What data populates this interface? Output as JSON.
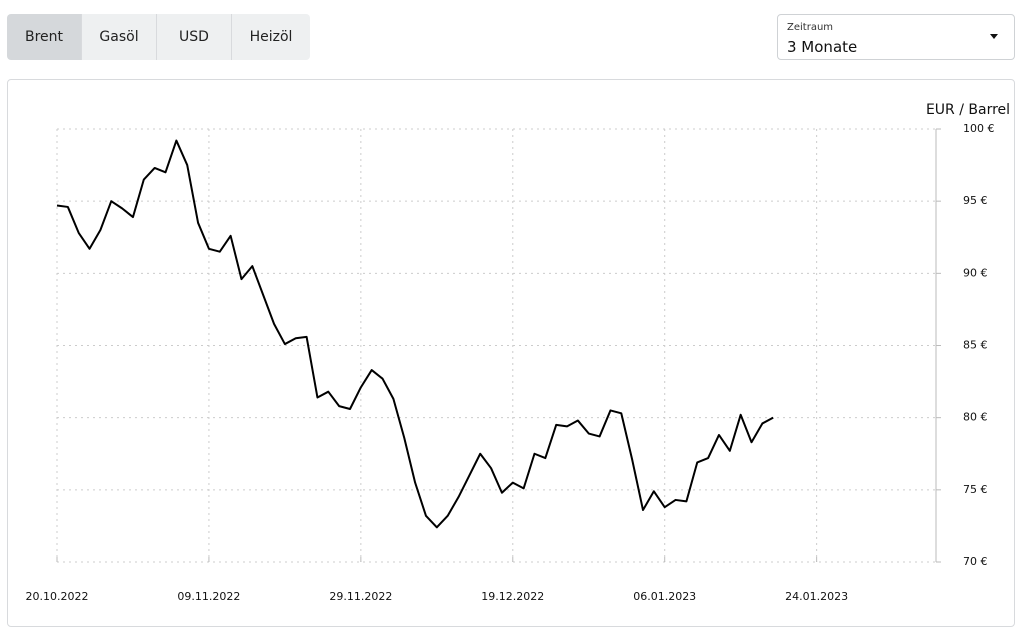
{
  "tabs": [
    "Brent",
    "Gasöl",
    "USD",
    "Heizöl"
  ],
  "dropdown": {
    "label": "Zeitraum",
    "value": "3 Monate"
  },
  "chart_data": {
    "type": "line",
    "y_label": "EUR / Barrel",
    "color": "#000000",
    "grid": true,
    "values": [
      94.7,
      94.6,
      92.8,
      91.7,
      93,
      95,
      94.5,
      93.9,
      96.5,
      97.3,
      97.0,
      99.2,
      97.5,
      93.5,
      91.7,
      91.5,
      92.6,
      89.6,
      90.5,
      88.5,
      86.5,
      85.1,
      85.5,
      85.6,
      81.4,
      81.8,
      80.8,
      80.6,
      82.1,
      83.3,
      82.7,
      81.3,
      78.6,
      75.5,
      73.2,
      72.4,
      73.2,
      74.5,
      76.0,
      77.5,
      76.5,
      74.8,
      75.5,
      75.1,
      77.5,
      77.2,
      79.5,
      79.4,
      79.8,
      78.9,
      78.7,
      80.5,
      80.3,
      77.1,
      73.6,
      74.9,
      73.8,
      74.3,
      74.2,
      76.9,
      77.2,
      78.8,
      77.7,
      80.2,
      78.3,
      79.6,
      80.0
    ],
    "xlim": [
      0,
      81
    ],
    "xticks": [
      {
        "value": 0,
        "label": "20.10.2022"
      },
      {
        "value": 14,
        "label": "09.11.2022"
      },
      {
        "value": 28,
        "label": "29.11.2022"
      },
      {
        "value": 42,
        "label": "19.12.2022"
      },
      {
        "value": 56,
        "label": "06.01.2023"
      },
      {
        "value": 70,
        "label": "24.01.2023"
      }
    ],
    "ylim": [
      70,
      100
    ],
    "yticks": [
      {
        "value": 70,
        "label": "70 €"
      },
      {
        "value": 75,
        "label": "75 €"
      },
      {
        "value": 80,
        "label": "80 €"
      },
      {
        "value": 85,
        "label": "85 €"
      },
      {
        "value": 90,
        "label": "90 €"
      },
      {
        "value": 95,
        "label": "95 €"
      },
      {
        "value": 100,
        "label": "100 €"
      }
    ]
  }
}
